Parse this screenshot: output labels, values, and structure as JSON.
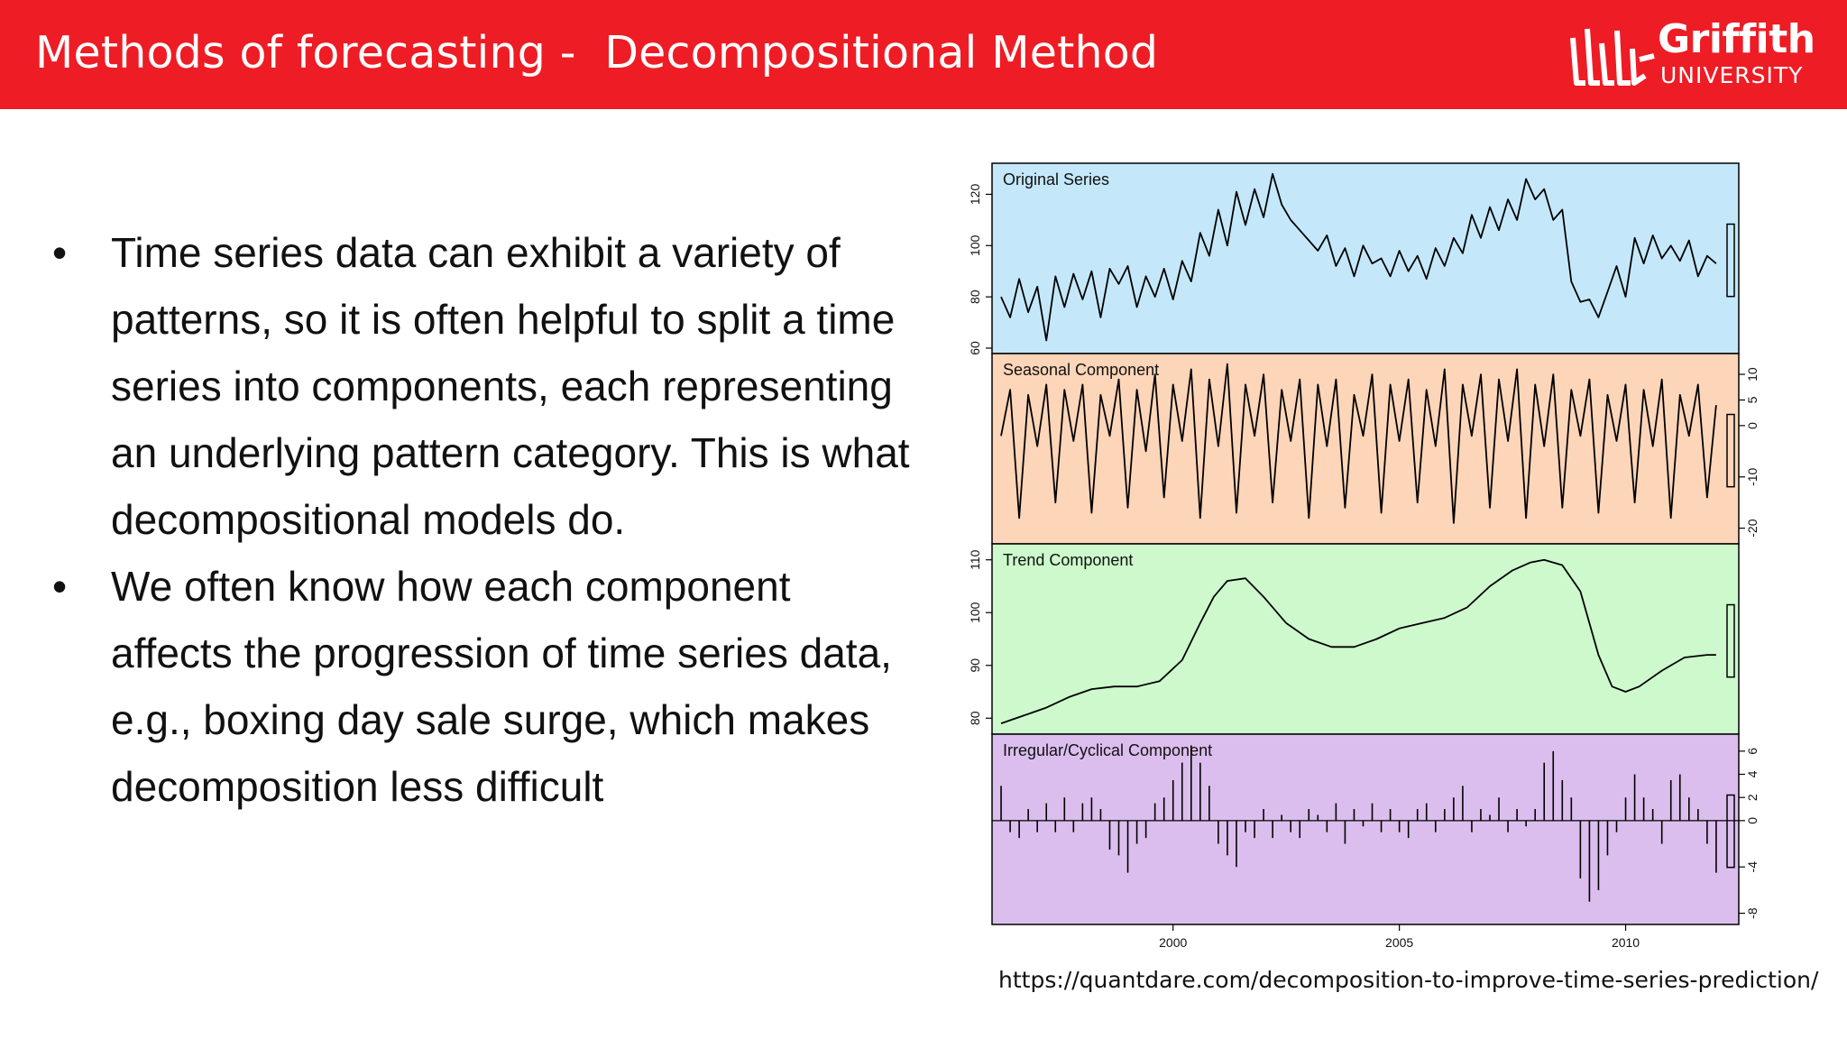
{
  "slide": {
    "title": "Methods of forecasting -  Decompositional Method",
    "logo_word": "Griffith",
    "logo_sub": "UNIVERSITY",
    "bullets": [
      "Time series data can exhibit a variety of patterns, so it is often helpful to split a time series into components, each representing an underlying pattern category. This is what decompositional models do.",
      "We often know how each component affects the progression of time series data, e.g., boxing day sale surge, which makes decomposition less difficult"
    ],
    "source": "https://quantdare.com/decomposition-to-improve-time-series-prediction/",
    "colors": {
      "header": "#ee1c25"
    }
  },
  "chart_data": {
    "type": "line",
    "x_ticks": [
      2000,
      2005,
      2010
    ],
    "x_range": [
      1996,
      2012.5
    ],
    "panels": [
      {
        "id": "original",
        "label": "Original Series",
        "kind": "line",
        "bg": "#c4e8fa",
        "axis_side": "left",
        "ylim": [
          60,
          130
        ],
        "ticks": [
          60,
          80,
          100,
          120
        ],
        "x": [
          1996.2,
          1996.4,
          1996.6,
          1996.8,
          1997.0,
          1997.2,
          1997.4,
          1997.6,
          1997.8,
          1998.0,
          1998.2,
          1998.4,
          1998.6,
          1998.8,
          1999.0,
          1999.2,
          1999.4,
          1999.6,
          1999.8,
          2000.0,
          2000.2,
          2000.4,
          2000.6,
          2000.8,
          2001.0,
          2001.2,
          2001.4,
          2001.6,
          2001.8,
          2002.0,
          2002.2,
          2002.4,
          2002.6,
          2002.8,
          2003.0,
          2003.2,
          2003.4,
          2003.6,
          2003.8,
          2004.0,
          2004.2,
          2004.4,
          2004.6,
          2004.8,
          2005.0,
          2005.2,
          2005.4,
          2005.6,
          2005.8,
          2006.0,
          2006.2,
          2006.4,
          2006.6,
          2006.8,
          2007.0,
          2007.2,
          2007.4,
          2007.6,
          2007.8,
          2008.0,
          2008.2,
          2008.4,
          2008.6,
          2008.8,
          2009.0,
          2009.2,
          2009.4,
          2009.6,
          2009.8,
          2010.0,
          2010.2,
          2010.4,
          2010.6,
          2010.8,
          2011.0,
          2011.2,
          2011.4,
          2011.6,
          2011.8,
          2012.0
        ],
        "values": [
          80,
          72,
          87,
          74,
          84,
          63,
          88,
          76,
          89,
          79,
          90,
          72,
          91,
          85,
          92,
          76,
          88,
          80,
          91,
          79,
          94,
          86,
          105,
          96,
          114,
          100,
          121,
          108,
          122,
          111,
          128,
          116,
          110,
          106,
          102,
          98,
          104,
          92,
          99,
          88,
          100,
          93,
          95,
          88,
          98,
          90,
          96,
          87,
          99,
          92,
          103,
          97,
          112,
          103,
          115,
          106,
          118,
          110,
          126,
          118,
          122,
          110,
          114,
          86,
          78,
          79,
          72,
          82,
          92,
          80,
          103,
          93,
          104,
          95,
          100,
          94,
          102,
          88,
          96,
          93
        ]
      },
      {
        "id": "seasonal",
        "label": "Seasonal Component",
        "kind": "line",
        "bg": "#fdd5b8",
        "axis_side": "right",
        "ylim": [
          -22,
          13
        ],
        "ticks": [
          -20,
          -10,
          0,
          5,
          10
        ],
        "x": [
          1996.2,
          1996.4,
          1996.6,
          1996.8,
          1997.0,
          1997.2,
          1997.4,
          1997.6,
          1997.8,
          1998.0,
          1998.2,
          1998.4,
          1998.6,
          1998.8,
          1999.0,
          1999.2,
          1999.4,
          1999.6,
          1999.8,
          2000.0,
          2000.2,
          2000.4,
          2000.6,
          2000.8,
          2001.0,
          2001.2,
          2001.4,
          2001.6,
          2001.8,
          2002.0,
          2002.2,
          2002.4,
          2002.6,
          2002.8,
          2003.0,
          2003.2,
          2003.4,
          2003.6,
          2003.8,
          2004.0,
          2004.2,
          2004.4,
          2004.6,
          2004.8,
          2005.0,
          2005.2,
          2005.4,
          2005.6,
          2005.8,
          2006.0,
          2006.2,
          2006.4,
          2006.6,
          2006.8,
          2007.0,
          2007.2,
          2007.4,
          2007.6,
          2007.8,
          2008.0,
          2008.2,
          2008.4,
          2008.6,
          2008.8,
          2009.0,
          2009.2,
          2009.4,
          2009.6,
          2009.8,
          2010.0,
          2010.2,
          2010.4,
          2010.6,
          2010.8,
          2011.0,
          2011.2,
          2011.4,
          2011.6,
          2011.8,
          2012.0
        ],
        "values": [
          -2,
          7,
          -18,
          6,
          -4,
          8,
          -15,
          7,
          -3,
          8,
          -17,
          6,
          -2,
          9,
          -16,
          7,
          -5,
          10,
          -14,
          8,
          -3,
          11,
          -18,
          9,
          -4,
          12,
          -17,
          8,
          -2,
          10,
          -15,
          7,
          -3,
          9,
          -18,
          8,
          -4,
          9,
          -16,
          6,
          -2,
          10,
          -17,
          8,
          -3,
          9,
          -15,
          7,
          -4,
          11,
          -19,
          8,
          -2,
          10,
          -16,
          9,
          -3,
          11,
          -18,
          8,
          -4,
          10,
          -16,
          7,
          -2,
          9,
          -17,
          6,
          -3,
          8,
          -15,
          7,
          -4,
          9,
          -18,
          6,
          -2,
          8,
          -14,
          4
        ]
      },
      {
        "id": "trend",
        "label": "Trend Component",
        "kind": "line",
        "bg": "#cdf9cd",
        "axis_side": "left",
        "ylim": [
          78,
          112
        ],
        "ticks": [
          80,
          90,
          100,
          110
        ],
        "x": [
          1996.2,
          1996.7,
          1997.2,
          1997.7,
          1998.2,
          1998.7,
          1999.2,
          1999.7,
          2000.2,
          2000.6,
          2000.9,
          2001.2,
          2001.6,
          2002.0,
          2002.5,
          2003.0,
          2003.5,
          2004.0,
          2004.5,
          2005.0,
          2005.5,
          2006.0,
          2006.5,
          2007.0,
          2007.5,
          2007.9,
          2008.2,
          2008.6,
          2009.0,
          2009.4,
          2009.7,
          2010.0,
          2010.3,
          2010.8,
          2011.3,
          2011.8,
          2012.0
        ],
        "values": [
          79,
          80.5,
          82,
          84,
          85.5,
          86,
          86,
          87,
          91,
          98,
          103,
          106,
          106.5,
          103,
          98,
          95,
          93.5,
          93.5,
          95,
          97,
          98,
          99,
          101,
          105,
          108,
          109.5,
          110,
          109,
          104,
          92,
          86,
          85,
          86,
          89,
          91.5,
          92,
          92
        ]
      },
      {
        "id": "irregular",
        "label": "Irregular/Cyclical Component",
        "kind": "bars",
        "bg": "#dbbeed",
        "axis_side": "right",
        "ylim": [
          -8.5,
          7
        ],
        "ticks": [
          -8,
          -4,
          0,
          2,
          4,
          6
        ],
        "x": [
          1996.2,
          1996.4,
          1996.6,
          1996.8,
          1997.0,
          1997.2,
          1997.4,
          1997.6,
          1997.8,
          1998.0,
          1998.2,
          1998.4,
          1998.6,
          1998.8,
          1999.0,
          1999.2,
          1999.4,
          1999.6,
          1999.8,
          2000.0,
          2000.2,
          2000.4,
          2000.6,
          2000.8,
          2001.0,
          2001.2,
          2001.4,
          2001.6,
          2001.8,
          2002.0,
          2002.2,
          2002.4,
          2002.6,
          2002.8,
          2003.0,
          2003.2,
          2003.4,
          2003.6,
          2003.8,
          2004.0,
          2004.2,
          2004.4,
          2004.6,
          2004.8,
          2005.0,
          2005.2,
          2005.4,
          2005.6,
          2005.8,
          2006.0,
          2006.2,
          2006.4,
          2006.6,
          2006.8,
          2007.0,
          2007.2,
          2007.4,
          2007.6,
          2007.8,
          2008.0,
          2008.2,
          2008.4,
          2008.6,
          2008.8,
          2009.0,
          2009.2,
          2009.4,
          2009.6,
          2009.8,
          2010.0,
          2010.2,
          2010.4,
          2010.6,
          2010.8,
          2011.0,
          2011.2,
          2011.4,
          2011.6,
          2011.8,
          2012.0
        ],
        "values": [
          3,
          -1,
          -1.5,
          1,
          -1,
          1.5,
          -1,
          2,
          -1,
          1.5,
          2,
          1,
          -2.5,
          -3,
          -4.5,
          -2,
          -1.5,
          1.5,
          2,
          3.5,
          5,
          6.5,
          5,
          3,
          -2,
          -3,
          -4,
          -1,
          -1.5,
          1,
          -1.5,
          0.5,
          -1,
          -1.5,
          1,
          0.5,
          -1,
          1.5,
          -2,
          1,
          -0.5,
          1.5,
          -1,
          1,
          -1,
          -1.5,
          1,
          1.5,
          -1,
          1,
          2,
          3,
          -1,
          1,
          0.5,
          2,
          -1,
          1,
          -0.5,
          1,
          5,
          6,
          3.5,
          2,
          -5,
          -7,
          -6,
          -3,
          -1,
          2,
          4,
          2,
          1,
          -2,
          3.5,
          4,
          2,
          1,
          -2,
          -4.5
        ]
      }
    ]
  }
}
